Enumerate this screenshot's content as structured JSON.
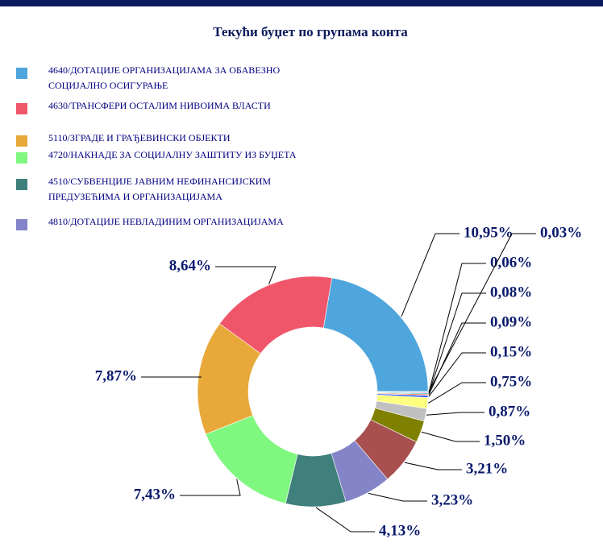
{
  "chart_data": {
    "type": "donut",
    "title": "Текући буџет по групама конта",
    "categories": [
      "4640/ДОТАЦИЈЕ ОРГАНИЗАЦИЈАМА ЗА ОБАВЕЗНО СОЦИЈАЛНО ОСИГУРАЊЕ",
      "4630/ТРАНСФЕРИ ОСТАЛИМ НИВОИМА ВЛАСТИ",
      "5110/ЗГРАДЕ И ГРАЂЕВИНСКИ ОБЈЕКТИ",
      "4720/НАКНАДЕ ЗА СОЦИЈАЛНУ ЗАШТИТУ ИЗ БУЏЕТА",
      "4510/СУБВЕНЦИЈЕ ЈАВНИМ НЕФИНАНСИЈСКИМ ПРЕДУЗЕЋИМА И ОРГАНИЗАЦИЈАМА",
      "4810/ДОТАЦИЈЕ НЕВЛАДИНИМ ОРГАНИЗАЦИЈАМА",
      null,
      null,
      null,
      null,
      null,
      null,
      null,
      null,
      null
    ],
    "values": [
      10.95,
      8.64,
      7.87,
      7.43,
      4.13,
      3.23,
      3.21,
      1.5,
      0.87,
      0.75,
      0.15,
      0.09,
      0.08,
      0.06,
      0.03
    ],
    "value_labels": [
      "10,95%",
      "8,64%",
      "7,87%",
      "7,43%",
      "4,13%",
      "3,23%",
      "3,21%",
      "1,50%",
      "0,87%",
      "0,75%",
      "0,15%",
      "0,09%",
      "0,08%",
      "0,06%",
      "0,03%"
    ],
    "colors": [
      "#4ea6dc",
      "#f0566a",
      "#e8a93a",
      "#80f880",
      "#3f7f7c",
      "#8484c8",
      "#a85050",
      "#808000",
      "#c0c0c0",
      "#ffff80",
      "#4060ff",
      "#ff8040",
      "#40c0c0",
      "#c040c0",
      "#80a0ff"
    ]
  }
}
